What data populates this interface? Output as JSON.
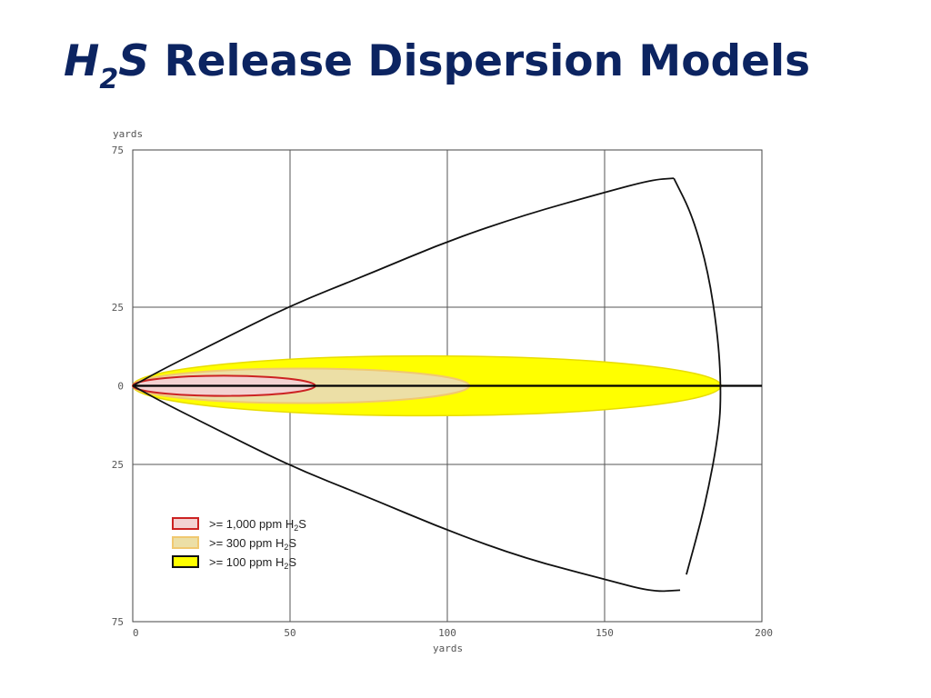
{
  "slide": {
    "title_formula_prefix": "H",
    "title_formula_subscript": "2",
    "title_formula_suffix": "S",
    "title_rest": " Release Dispersion Models"
  },
  "colors": {
    "title": "#0c2461",
    "ppm_1000_fill": "#f3d2d2",
    "ppm_1000_edge": "#cc2222",
    "ppm_300_fill": "#ecdfa6",
    "ppm_300_edge": "#f0c870",
    "ppm_100_fill": "#ffff00",
    "ppm_100_edge": "#e8dc00"
  },
  "chart_data": {
    "type": "area",
    "xlabel": "yards",
    "ylabel": "yards",
    "xlim": [
      0,
      200
    ],
    "ylim": [
      -75,
      75
    ],
    "x_ticks": [
      {
        "value": 0,
        "label": "0"
      },
      {
        "value": 50,
        "label": "50"
      },
      {
        "value": 100,
        "label": "100"
      },
      {
        "value": 150,
        "label": "150"
      },
      {
        "value": 200,
        "label": "200"
      }
    ],
    "y_ticks": [
      {
        "value": 75,
        "label": "75"
      },
      {
        "value": 25,
        "label": "25"
      },
      {
        "value": 0,
        "label": "0"
      },
      {
        "value": -25,
        "label": "25"
      },
      {
        "value": -75,
        "label": "75"
      }
    ],
    "grid": true,
    "legend_position": "bottom-left",
    "series": [
      {
        "name": ">= 1,000 ppm H2S",
        "legend_prefix": ">= 1,000 ppm H",
        "legend_sub": "2",
        "legend_suffix": "S",
        "type": "ellipse",
        "x_start": 0,
        "x_end": 58,
        "half_width": 3.2
      },
      {
        "name": ">= 300 ppm H2S",
        "legend_prefix": ">=   300 ppm H",
        "legend_sub": "2",
        "legend_suffix": "S",
        "type": "ellipse",
        "x_start": 0,
        "x_end": 107,
        "half_width": 5.5
      },
      {
        "name": ">= 100 ppm H2S",
        "legend_prefix": ">=   100 ppm H",
        "legend_sub": "2",
        "legend_suffix": "S",
        "type": "ellipse",
        "x_start": 0,
        "x_end": 187,
        "half_width": 9.5
      }
    ],
    "centerline": {
      "x_start": 0,
      "x_end": 200
    },
    "outer_envelope": {
      "upper": [
        [
          0,
          0
        ],
        [
          10,
          5.5
        ],
        [
          25,
          13
        ],
        [
          50,
          25.5
        ],
        [
          75,
          35.5
        ],
        [
          100,
          46
        ],
        [
          125,
          54.5
        ],
        [
          150,
          61.5
        ],
        [
          165,
          65.5
        ],
        [
          172,
          66
        ]
      ],
      "arc_right": [
        [
          172,
          66
        ],
        [
          178,
          54
        ],
        [
          183,
          36
        ],
        [
          186,
          16
        ],
        [
          187,
          0
        ],
        [
          186.5,
          -14
        ],
        [
          182,
          -38
        ],
        [
          176,
          -60
        ]
      ],
      "lower": [
        [
          174,
          -65
        ],
        [
          165,
          -65.5
        ],
        [
          150,
          -61.5
        ],
        [
          125,
          -55
        ],
        [
          100,
          -46
        ],
        [
          75,
          -35.5
        ],
        [
          50,
          -25.5
        ],
        [
          25,
          -13
        ],
        [
          10,
          -5.5
        ],
        [
          0,
          0
        ]
      ]
    }
  }
}
